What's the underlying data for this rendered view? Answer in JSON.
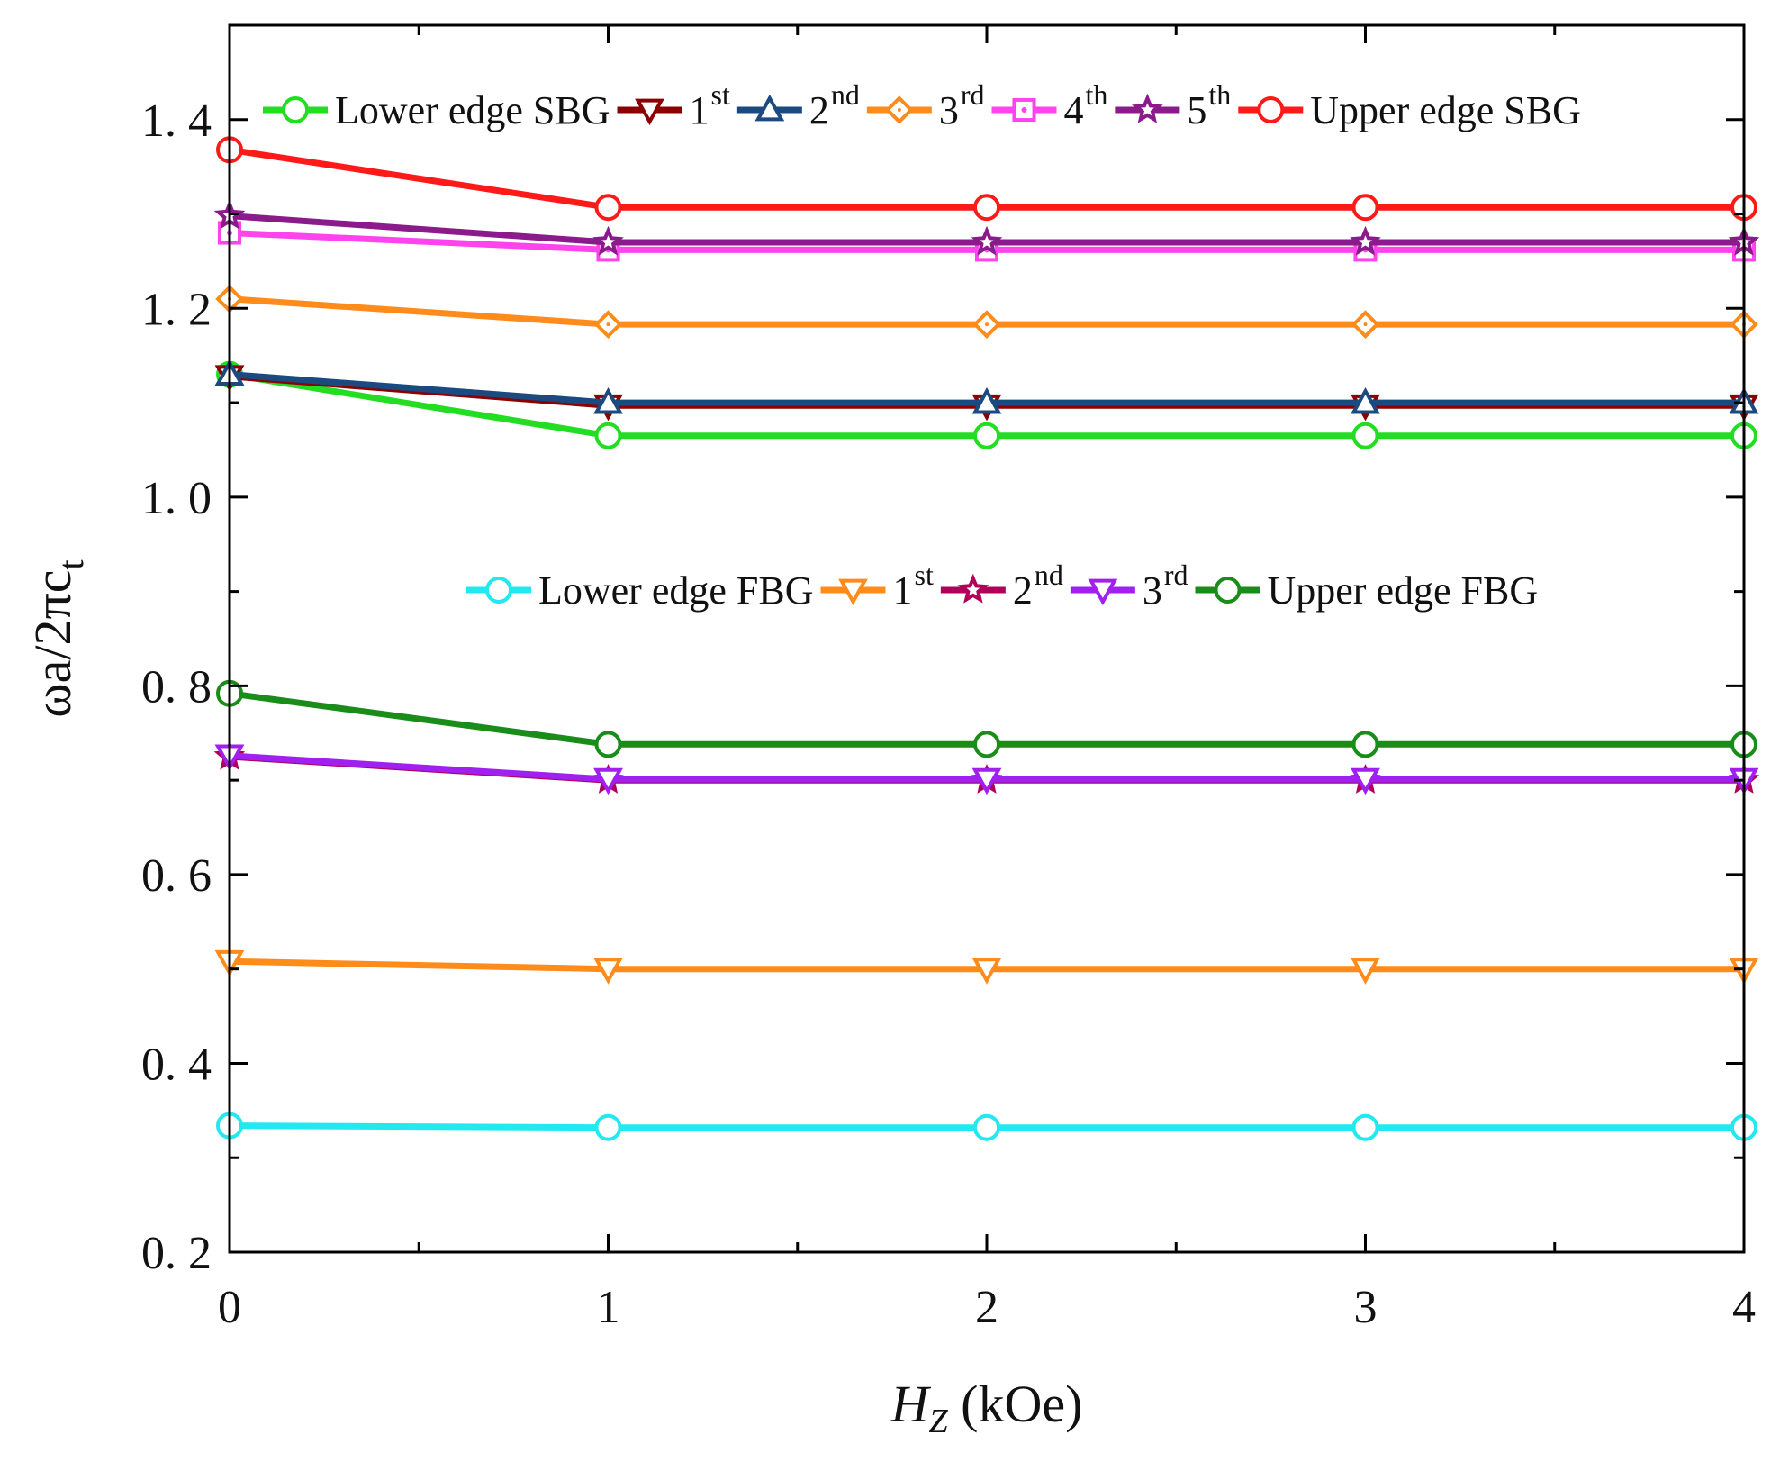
{
  "chart_data": {
    "type": "line",
    "x": [
      0,
      1,
      2,
      3,
      4
    ],
    "xlim": [
      0,
      4
    ],
    "ylim": [
      0.2,
      1.5
    ],
    "xticks": [
      0,
      1,
      2,
      3,
      4
    ],
    "yticks": [
      0.2,
      0.4,
      0.6,
      0.8,
      1.0,
      1.2,
      1.4
    ],
    "ytick_labels": [
      "0. 2",
      "0. 4",
      "0. 6",
      "0. 8",
      "1. 0",
      "1. 2",
      "1. 4"
    ],
    "xlabel": {
      "var": "H",
      "sub": "Z",
      "unit": " (kOe)"
    },
    "ylabel": {
      "main": "ωa/2πc",
      "sub": "t"
    },
    "grid": false,
    "series": [
      {
        "name": "Lower edge SBG",
        "sup": "",
        "group": "SBG",
        "color": "#22dd22",
        "marker": "circle",
        "values": [
          1.13,
          1.065,
          1.065,
          1.065,
          1.065
        ]
      },
      {
        "name": "1",
        "sup": "st",
        "group": "SBG",
        "color": "#8b0000",
        "marker": "triangle-down",
        "values": [
          1.128,
          1.097,
          1.097,
          1.097,
          1.097
        ]
      },
      {
        "name": "2",
        "sup": "nd",
        "group": "SBG",
        "color": "#1a4a80",
        "marker": "triangle-up",
        "values": [
          1.13,
          1.1,
          1.1,
          1.1,
          1.1
        ]
      },
      {
        "name": "3",
        "sup": "rd",
        "group": "SBG",
        "color": "#ff8c1a",
        "marker": "diamond",
        "values": [
          1.21,
          1.183,
          1.183,
          1.183,
          1.183
        ]
      },
      {
        "name": "4",
        "sup": "th",
        "group": "SBG",
        "color": "#ff44ee",
        "marker": "square-dot",
        "values": [
          1.28,
          1.262,
          1.262,
          1.262,
          1.262
        ]
      },
      {
        "name": "5",
        "sup": "th",
        "group": "SBG",
        "color": "#8b1a8b",
        "marker": "star",
        "values": [
          1.298,
          1.27,
          1.27,
          1.27,
          1.27
        ]
      },
      {
        "name": "Upper edge SBG",
        "sup": "",
        "group": "SBG",
        "color": "#ff1a1a",
        "marker": "circle",
        "values": [
          1.368,
          1.307,
          1.307,
          1.307,
          1.307
        ]
      },
      {
        "name": "Lower edge FBG",
        "sup": "",
        "group": "FBG",
        "color": "#22e8f0",
        "marker": "circle",
        "values": [
          0.334,
          0.332,
          0.332,
          0.332,
          0.332
        ]
      },
      {
        "name": "1",
        "sup": "st",
        "group": "FBG",
        "color": "#ff8c1a",
        "marker": "triangle-down",
        "values": [
          0.508,
          0.5,
          0.5,
          0.5,
          0.5
        ]
      },
      {
        "name": "2",
        "sup": "nd",
        "group": "FBG",
        "color": "#b0005a",
        "marker": "star",
        "values": [
          0.725,
          0.7,
          0.7,
          0.7,
          0.7
        ]
      },
      {
        "name": "3",
        "sup": "rd",
        "group": "FBG",
        "color": "#a020f0",
        "marker": "triangle-down",
        "values": [
          0.726,
          0.701,
          0.701,
          0.701,
          0.701
        ]
      },
      {
        "name": "Upper edge FBG",
        "sup": "",
        "group": "FBG",
        "color": "#1a8c1a",
        "marker": "circle",
        "values": [
          0.792,
          0.738,
          0.738,
          0.738,
          0.738
        ]
      }
    ],
    "legends": [
      {
        "group": "SBG",
        "position": "top"
      },
      {
        "group": "FBG",
        "position": "middle"
      }
    ]
  }
}
